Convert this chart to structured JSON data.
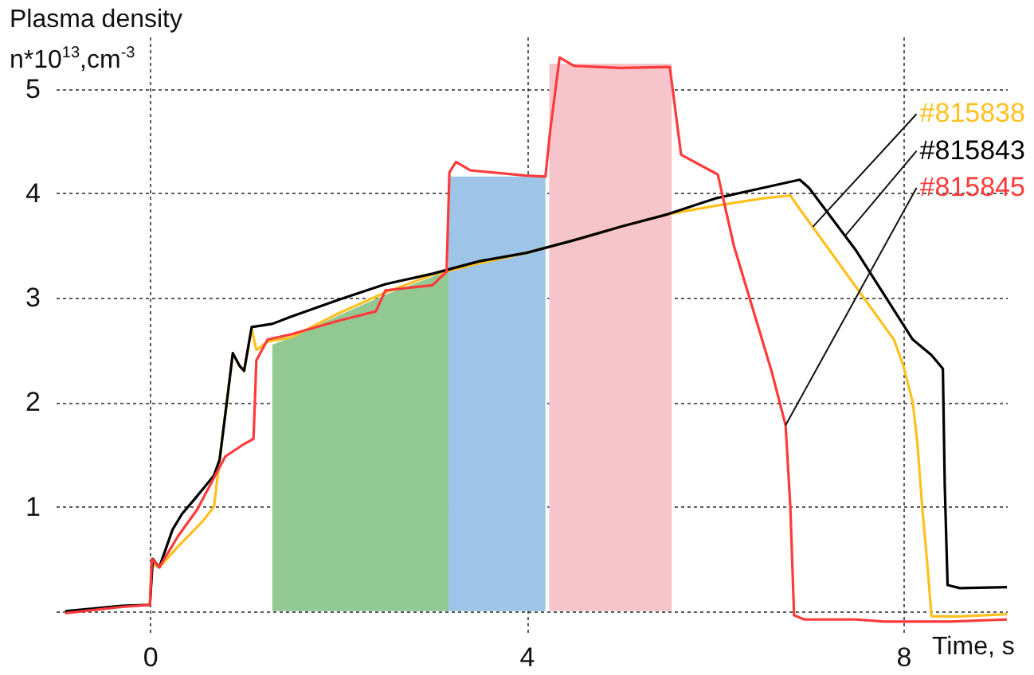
{
  "chart_data": {
    "type": "line",
    "xlabel": "Time, s",
    "ylabel": "Plasma density\nn*10$^{13}$,cm$^{-3}$",
    "xlim": [
      -1,
      9.1
    ],
    "ylim": [
      -0.2,
      5.5
    ],
    "xticks": [
      0,
      4,
      8
    ],
    "yticks": [
      {
        "value": 0,
        "label": null
      },
      1,
      2,
      3,
      4,
      5
    ],
    "grid": true,
    "series": [
      {
        "type": "area",
        "color": "#92c892",
        "x": [
          1.3,
          1.5,
          2.0,
          2.5,
          3.0,
          3.17
        ],
        "values": [
          2.55,
          2.62,
          2.83,
          3.03,
          3.2,
          3.28
        ]
      },
      {
        "type": "area",
        "color": "#9ec5e8",
        "x": [
          3.17,
          4.2
        ],
        "values": [
          4.16,
          4.16
        ]
      },
      {
        "type": "area",
        "color": "#f5c5cb",
        "x": [
          4.24,
          5.54
        ],
        "values": [
          5.24,
          5.24
        ]
      },
      {
        "color": "#ffc020",
        "x": [
          0,
          0.02,
          0.1,
          0.3,
          0.55,
          0.68,
          0.74,
          0.83,
          0.88,
          0.95,
          1.0,
          1.08,
          1.13,
          1.25,
          1.5,
          2.0,
          2.5,
          3.0,
          3.5,
          4.0,
          4.5,
          5.0,
          5.5,
          6.0,
          6.5,
          6.8,
          6.9,
          7.5,
          7.9,
          8.0,
          8.1,
          8.15,
          8.2,
          8.25,
          8.3,
          8.6,
          9.1
        ],
        "values": [
          0.06,
          0.45,
          0.42,
          0.62,
          0.85,
          1.0,
          1.45,
          2.1,
          2.47,
          2.35,
          2.3,
          2.7,
          2.5,
          2.58,
          2.62,
          2.85,
          3.05,
          3.22,
          3.33,
          3.43,
          3.55,
          3.68,
          3.8,
          3.88,
          3.95,
          3.98,
          3.85,
          3.1,
          2.6,
          2.35,
          2.0,
          1.6,
          1.0,
          0.5,
          -0.05,
          -0.05,
          -0.03
        ]
      },
      {
        "color": "#000000",
        "x": [
          -0.9,
          -0.3,
          0,
          0.03,
          0.1,
          0.24,
          0.34,
          0.5,
          0.68,
          0.74,
          0.83,
          0.88,
          0.95,
          1.0,
          1.08,
          1.3,
          1.5,
          2.0,
          2.5,
          3.0,
          3.5,
          4.0,
          4.5,
          5.0,
          5.5,
          6.0,
          6.5,
          6.9,
          7.0,
          7.5,
          8.1,
          8.3,
          8.42,
          8.44,
          8.47,
          8.6,
          9.1
        ],
        "values": [
          0.0,
          0.05,
          0.06,
          0.5,
          0.42,
          0.78,
          0.93,
          1.1,
          1.3,
          1.45,
          2.1,
          2.47,
          2.35,
          2.3,
          2.72,
          2.75,
          2.82,
          2.98,
          3.13,
          3.23,
          3.35,
          3.43,
          3.55,
          3.68,
          3.8,
          3.95,
          4.05,
          4.13,
          4.05,
          3.45,
          2.6,
          2.45,
          2.32,
          1.2,
          0.25,
          0.22,
          0.23
        ]
      },
      {
        "color": "#ff3a3a",
        "x": [
          -0.9,
          -0.3,
          0,
          0.02,
          0.1,
          0.3,
          0.5,
          0.8,
          1.0,
          1.1,
          1.13,
          1.25,
          1.5,
          2.0,
          2.4,
          2.5,
          3.0,
          3.15,
          3.18,
          3.25,
          3.4,
          4.0,
          4.2,
          4.25,
          4.35,
          4.5,
          5.0,
          5.52,
          5.64,
          6.03,
          6.2,
          6.4,
          6.6,
          6.75,
          6.8,
          6.84,
          6.95,
          7.5,
          7.8,
          8.5,
          9.1
        ],
        "values": [
          -0.02,
          0.04,
          0.06,
          0.5,
          0.42,
          0.72,
          0.97,
          1.48,
          1.6,
          1.65,
          2.4,
          2.6,
          2.65,
          2.78,
          2.87,
          3.07,
          3.12,
          3.25,
          4.2,
          4.3,
          4.22,
          4.17,
          4.16,
          4.6,
          5.3,
          5.22,
          5.2,
          5.21,
          4.37,
          4.18,
          3.5,
          2.9,
          2.3,
          1.78,
          1.0,
          -0.04,
          -0.08,
          -0.08,
          -0.1,
          -0.1,
          -0.08
        ]
      }
    ],
    "annotations": [
      {
        "text": "#815838",
        "x": 7.04,
        "y": 3.68
      },
      {
        "text": "#815843",
        "x": 7.38,
        "y": 3.59
      },
      {
        "text": "#815845",
        "x": 6.75,
        "y": 1.78
      }
    ]
  }
}
